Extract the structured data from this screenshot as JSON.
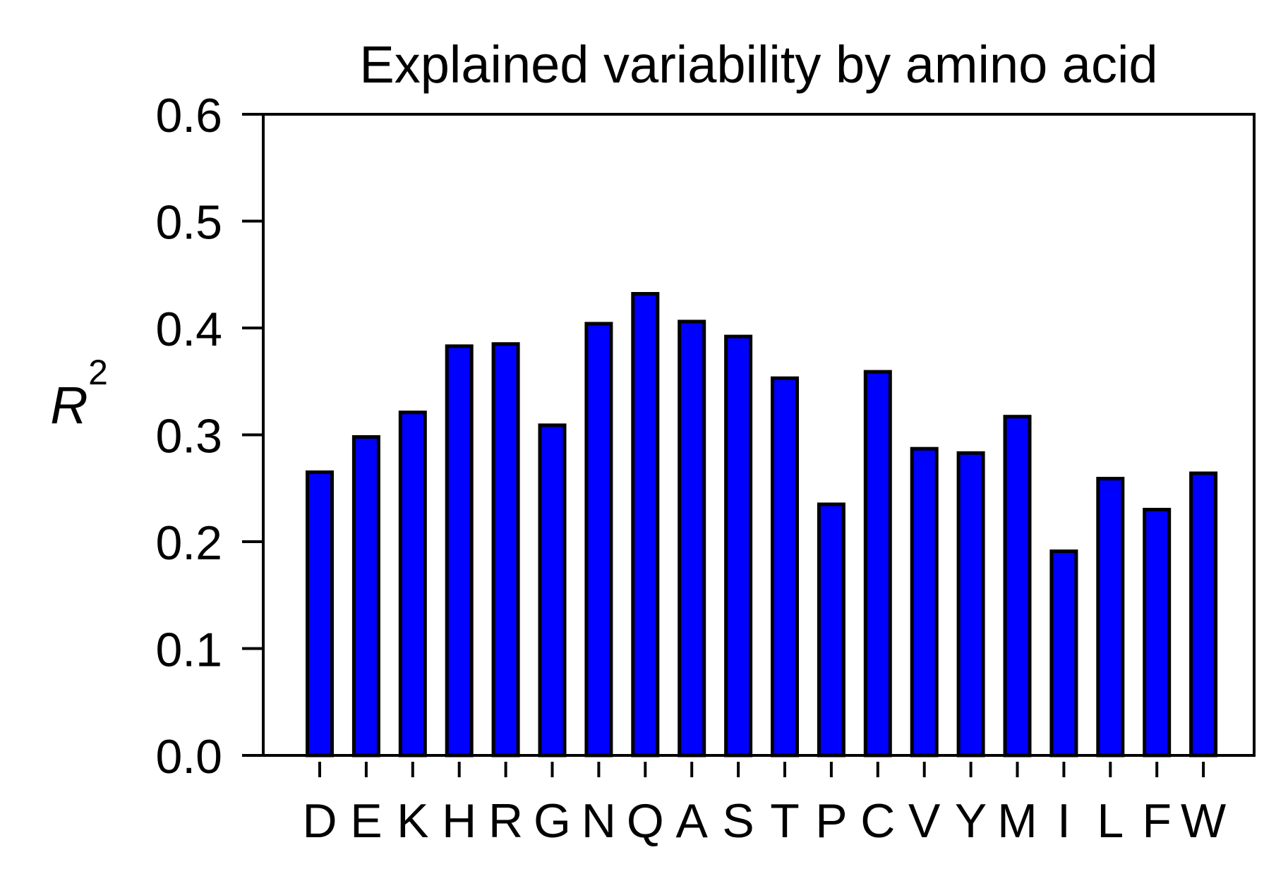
{
  "chart_data": {
    "type": "bar",
    "title": "Explained variability by amino acid",
    "xlabel": "",
    "ylabel": "R",
    "ylabel_superscript": "2",
    "categories": [
      "D",
      "E",
      "K",
      "H",
      "R",
      "G",
      "N",
      "Q",
      "A",
      "S",
      "T",
      "P",
      "C",
      "V",
      "Y",
      "M",
      "I",
      "L",
      "F",
      "W"
    ],
    "values": [
      0.265,
      0.298,
      0.321,
      0.383,
      0.385,
      0.309,
      0.404,
      0.432,
      0.406,
      0.392,
      0.353,
      0.235,
      0.359,
      0.287,
      0.283,
      0.317,
      0.191,
      0.259,
      0.23,
      0.264
    ],
    "ylim": [
      0,
      0.6
    ],
    "yticks": [
      "0.0",
      "0.1",
      "0.2",
      "0.3",
      "0.4",
      "0.5",
      "0.6"
    ],
    "grid": false,
    "legend": "none",
    "bar_color": "#0000ff",
    "edge_color": "#000000"
  }
}
